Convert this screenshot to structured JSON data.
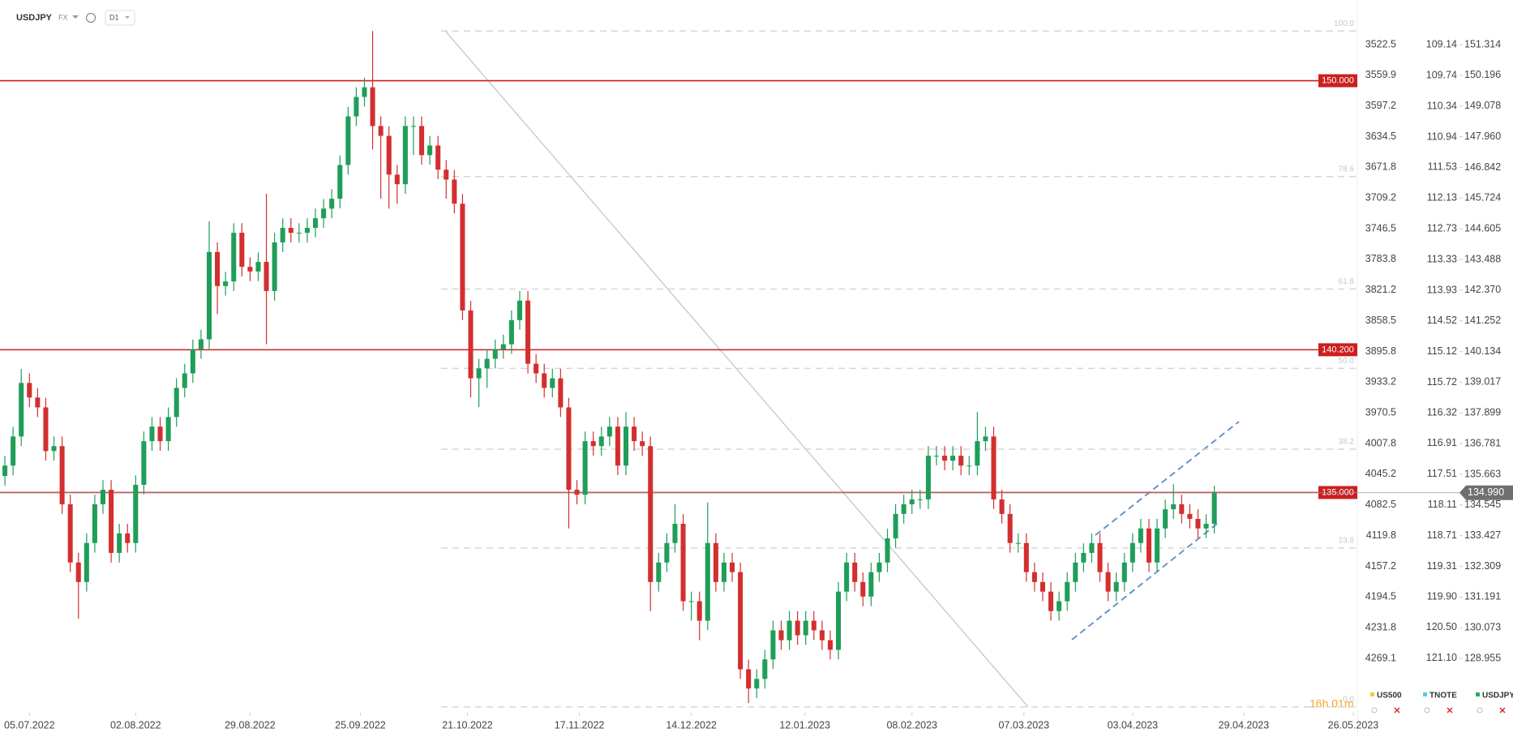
{
  "header": {
    "symbol": "USDJPY",
    "market": "FX",
    "interval": "D1"
  },
  "countdown": "16h 01m",
  "legend": [
    {
      "name": "US500",
      "color": "#f2c94c"
    },
    {
      "name": "TNOTE",
      "color": "#56ccf2"
    },
    {
      "name": "USDJPY",
      "color": "#27ae60"
    }
  ],
  "chart_data": {
    "type": "candlestick",
    "up_color": "#1f9e5a",
    "down_color": "#d32f2f",
    "xlim": [
      -0.6,
      165.5
    ],
    "xticks": [
      {
        "value": 3,
        "label": "05.07.2022"
      },
      {
        "value": 16,
        "label": "02.08.2022"
      },
      {
        "value": 30,
        "label": "29.08.2022"
      },
      {
        "value": 43.5,
        "label": "25.09.2022"
      },
      {
        "value": 56.6,
        "label": "21.10.2022"
      },
      {
        "value": 70.3,
        "label": "17.11.2022"
      },
      {
        "value": 84,
        "label": "14.12.2022"
      },
      {
        "value": 97.9,
        "label": "12.01.2023"
      },
      {
        "value": 111,
        "label": "08.02.2023"
      },
      {
        "value": 124.7,
        "label": "07.03.2023"
      },
      {
        "value": 138,
        "label": "03.04.2023"
      },
      {
        "value": 151.6,
        "label": "29.04.2023"
      },
      {
        "value": 165,
        "label": "26.05.2023"
      }
    ],
    "ylim": [
      126.98,
      152.94
    ],
    "yticks": [
      151.314,
      {
        "value": 150.196,
        "label": "150.196"
      },
      149.078,
      {
        "value": 147.96,
        "label": "147.960"
      },
      146.842,
      145.724,
      144.605,
      143.488,
      {
        "value": 142.37,
        "label": "142.370"
      },
      141.252,
      140.134,
      139.017,
      137.899,
      136.781,
      135.663,
      134.545,
      133.427,
      132.309,
      131.191,
      130.073,
      128.955
    ],
    "us500_axis": {
      "lim": [
        3468.3,
        4335.2
      ],
      "ticks": [
        3522.5,
        3559.9,
        3597.2,
        3634.5,
        3671.8,
        3709.2,
        3746.5,
        3783.8,
        3821.2,
        3858.5,
        3895.8,
        3933.2,
        3970.5,
        4007.8,
        4045.2,
        4082.5,
        4119.8,
        4157.2,
        4194.5,
        4231.8,
        4269.1
      ]
    },
    "tnote_axis": {
      "lim": [
        108.27,
        122.16
      ],
      "ticks": [
        109.14,
        109.74,
        110.34,
        110.94,
        111.53,
        112.13,
        112.73,
        113.33,
        113.93,
        114.52,
        115.12,
        115.72,
        116.32,
        116.91,
        117.51,
        118.11,
        118.71,
        119.31,
        {
          "value": 119.9,
          "label": "119.90"
        },
        {
          "value": 120.5,
          "label": "120.50"
        },
        {
          "value": 121.1,
          "label": "121.10"
        }
      ]
    },
    "levels": [
      {
        "value": 150,
        "label": "150.000"
      },
      {
        "value": 140.2,
        "label": "140.200"
      },
      {
        "value": 135,
        "label": "135.000"
      }
    ],
    "level_color": "#cc1f1f",
    "last_price": {
      "value": 134.99,
      "label": "134.990"
    },
    "fib_levels": [
      {
        "value": 151.81,
        "label": "100.0"
      },
      {
        "value": 146.51,
        "label": "78.6"
      },
      {
        "value": 142.41,
        "label": "61.8"
      },
      {
        "value": 139.52,
        "label": "50.0"
      },
      {
        "value": 136.58,
        "label": "38.2"
      },
      {
        "value": 132.98,
        "label": "23.6"
      },
      {
        "value": 127.19,
        "label": "0.0"
      }
    ],
    "open": [
      135.6,
      135.98,
      137.04,
      138.99,
      138.46,
      138.1,
      136.51,
      136.69,
      134.57,
      132.45,
      131.74,
      133.16,
      134.57,
      135.1,
      132.8,
      133.51,
      133.16,
      135.28,
      136.87,
      137.4,
      136.87,
      137.75,
      138.81,
      139.34,
      140.22,
      140.58,
      143.76,
      142.52,
      142.69,
      144.46,
      143.22,
      143.05,
      143.4,
      142.34,
      144.11,
      144.64,
      144.46,
      144.46,
      144.64,
      144.99,
      145.34,
      145.7,
      146.93,
      148.7,
      149.41,
      149.76,
      148.35,
      147.99,
      146.58,
      146.23,
      148.35,
      148.35,
      147.29,
      147.64,
      146.76,
      146.4,
      145.52,
      141.63,
      139.16,
      139.52,
      139.87,
      140.22,
      140.4,
      141.28,
      141.99,
      139.69,
      139.34,
      138.81,
      139.16,
      138.1,
      135.1,
      134.92,
      136.87,
      136.69,
      137.04,
      137.4,
      135.98,
      137.4,
      136.87,
      136.69,
      131.74,
      132.45,
      133.16,
      133.86,
      131.04,
      131.04,
      130.33,
      133.16,
      131.74,
      132.45,
      132.1,
      128.56,
      127.86,
      128.21,
      128.92,
      129.98,
      129.62,
      130.33,
      129.8,
      130.33,
      129.98,
      129.62,
      129.27,
      131.39,
      132.45,
      131.74,
      131.21,
      132.1,
      132.45,
      133.33,
      134.22,
      134.57,
      134.75,
      134.75,
      136.34,
      136.34,
      136.16,
      136.34,
      135.98,
      135.98,
      136.87,
      137.04,
      134.75,
      134.22,
      133.16,
      133.16,
      132.1,
      131.74,
      131.39,
      130.68,
      131.04,
      131.74,
      132.45,
      132.8,
      133.16,
      132.1,
      131.39,
      131.74,
      132.45,
      133.16,
      133.69,
      132.45,
      133.69,
      134.39,
      134.57,
      134.22,
      134.04,
      133.69,
      133.86
    ],
    "high": [
      136.33,
      137.39,
      139.5,
      139.34,
      138.81,
      138.45,
      137.04,
      137.04,
      134.92,
      132.8,
      133.51,
      134.92,
      135.45,
      135.45,
      133.86,
      133.86,
      135.63,
      137.22,
      137.75,
      137.75,
      138.1,
      139.16,
      139.69,
      140.57,
      140.93,
      144.88,
      144.11,
      143.04,
      144.81,
      144.81,
      143.57,
      143.75,
      145.88,
      144.46,
      144.99,
      144.99,
      144.81,
      144.99,
      145.34,
      145.69,
      146.05,
      147.28,
      149.05,
      149.76,
      150.11,
      151.81,
      148.7,
      148.34,
      146.93,
      148.7,
      148.7,
      148.7,
      147.99,
      147.99,
      147.11,
      146.75,
      145.87,
      141.98,
      139.87,
      140.22,
      140.57,
      140.75,
      141.63,
      142.34,
      142.34,
      140.04,
      139.69,
      139.51,
      139.51,
      138.45,
      135.45,
      137.22,
      137.22,
      137.39,
      137.75,
      137.75,
      137.93,
      137.75,
      137.22,
      137.04,
      132.8,
      133.51,
      134.57,
      134.21,
      131.39,
      131.39,
      134.64,
      133.51,
      132.8,
      132.8,
      132.45,
      128.91,
      128.56,
      129.27,
      130.33,
      130.33,
      130.68,
      130.68,
      130.68,
      130.68,
      130.33,
      129.97,
      131.74,
      132.8,
      132.8,
      132.09,
      132.45,
      132.8,
      133.68,
      134.57,
      134.92,
      135.1,
      135.1,
      136.69,
      136.69,
      136.69,
      136.69,
      136.69,
      136.33,
      137.93,
      137.39,
      137.39,
      135.1,
      134.57,
      133.51,
      133.51,
      132.45,
      132.09,
      131.74,
      131.39,
      132.09,
      132.8,
      133.15,
      133.51,
      133.51,
      132.45,
      132.09,
      132.8,
      133.51,
      134.04,
      134.04,
      134.04,
      134.74,
      135.3,
      134.92,
      134.57,
      134.39,
      134.21,
      135.25
    ],
    "low": [
      135.25,
      135.63,
      136.69,
      138.11,
      137.75,
      136.16,
      136.16,
      134.22,
      132.1,
      130.4,
      131.39,
      132.81,
      134.22,
      132.45,
      132.45,
      132.81,
      132.81,
      134.93,
      136.52,
      136.52,
      136.52,
      137.4,
      138.46,
      138.99,
      139.87,
      140.23,
      141.5,
      142.17,
      142.34,
      142.87,
      142.7,
      142.7,
      140.4,
      141.99,
      143.76,
      144.11,
      144.11,
      144.11,
      144.29,
      144.64,
      144.99,
      145.35,
      146.58,
      148.35,
      149.06,
      147.5,
      145.7,
      145.34,
      145.52,
      145.88,
      147.29,
      146.94,
      146.94,
      146.41,
      145.7,
      145.17,
      141.28,
      138.46,
      138.11,
      138.81,
      139.52,
      139.87,
      140.05,
      140.93,
      139.34,
      138.99,
      138.46,
      138.46,
      137.75,
      133.69,
      134.57,
      134.57,
      136.34,
      136.34,
      136.69,
      135.63,
      135.63,
      136.52,
      136.34,
      130.68,
      131.39,
      132.1,
      132.81,
      130.69,
      130.33,
      129.62,
      129.98,
      131.39,
      131.39,
      131.75,
      128.21,
      127.33,
      127.51,
      127.86,
      128.57,
      129.27,
      129.27,
      129.45,
      129.45,
      129.63,
      129.27,
      128.92,
      128.92,
      131.04,
      131.39,
      130.86,
      130.86,
      131.75,
      132.1,
      132.98,
      133.87,
      134.22,
      134.4,
      134.4,
      135.99,
      135.81,
      135.81,
      135.63,
      135.63,
      135.63,
      136.52,
      134.4,
      133.87,
      132.81,
      132.81,
      131.75,
      131.39,
      131.04,
      130.33,
      130.33,
      130.69,
      131.39,
      132.1,
      132.45,
      131.75,
      131.04,
      131.04,
      131.39,
      132.1,
      132.81,
      132.1,
      132.1,
      133.34,
      134.04,
      133.87,
      133.69,
      133.34,
      133.34,
      133.51
    ],
    "close": [
      135.98,
      137.04,
      138.99,
      138.46,
      138.1,
      136.51,
      136.69,
      134.57,
      132.45,
      131.74,
      133.16,
      134.57,
      135.1,
      132.8,
      133.51,
      133.16,
      135.28,
      136.87,
      137.4,
      136.87,
      137.75,
      138.81,
      139.34,
      140.22,
      140.58,
      143.76,
      142.52,
      142.69,
      144.46,
      143.22,
      143.05,
      143.4,
      142.34,
      144.11,
      144.64,
      144.46,
      144.46,
      144.64,
      144.99,
      145.34,
      145.7,
      146.93,
      148.7,
      149.41,
      149.76,
      148.35,
      147.99,
      146.58,
      146.23,
      148.35,
      148.35,
      147.29,
      147.64,
      146.76,
      146.4,
      145.52,
      141.63,
      139.16,
      139.52,
      139.87,
      140.22,
      140.4,
      141.28,
      141.99,
      139.69,
      139.34,
      138.81,
      139.16,
      138.1,
      135.1,
      134.92,
      136.87,
      136.69,
      137.04,
      137.4,
      135.98,
      137.4,
      136.87,
      136.69,
      131.74,
      132.45,
      133.16,
      133.86,
      131.04,
      131.04,
      130.33,
      133.16,
      131.74,
      132.45,
      132.1,
      128.56,
      127.86,
      128.21,
      128.92,
      129.98,
      129.62,
      130.33,
      129.8,
      130.33,
      129.98,
      129.62,
      129.27,
      131.39,
      132.45,
      131.74,
      131.21,
      132.1,
      132.45,
      133.33,
      134.22,
      134.57,
      134.75,
      134.75,
      136.34,
      136.34,
      136.16,
      136.34,
      135.98,
      135.98,
      136.87,
      137.04,
      134.75,
      134.22,
      133.16,
      133.16,
      132.1,
      131.74,
      131.39,
      130.68,
      131.04,
      131.74,
      132.45,
      132.8,
      133.16,
      132.1,
      131.39,
      131.74,
      132.45,
      133.16,
      133.69,
      132.45,
      133.69,
      134.39,
      134.57,
      134.22,
      134.04,
      133.69,
      133.86,
      134.99
    ]
  }
}
